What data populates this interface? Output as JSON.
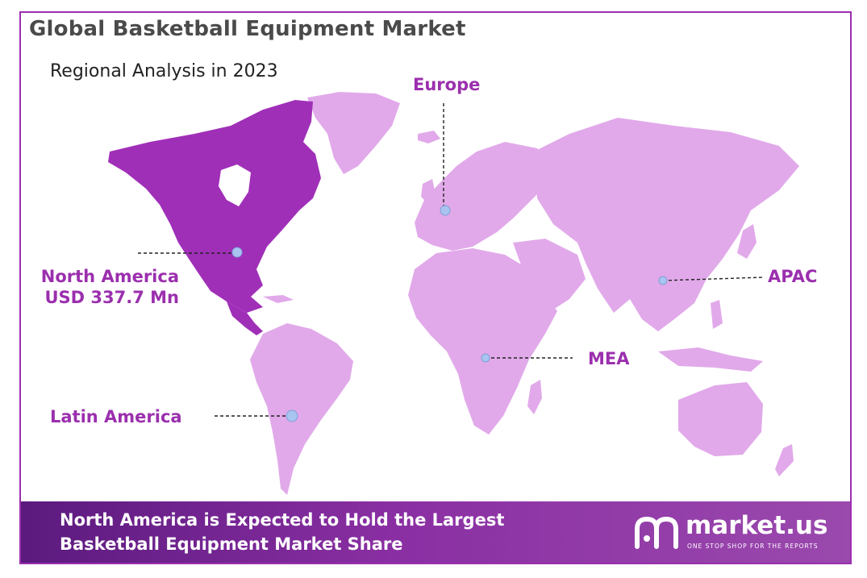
{
  "title": "Global Basketball Equipment Market",
  "subtitle": "Regional Analysis in 2023",
  "colors": {
    "highlight_region": "#a02fb8",
    "other_regions": "#e1a9ea",
    "label": "#9b2fae",
    "marker": "#a9c4f0",
    "footer_start": "#5b1a7e",
    "footer_end": "#9a49ad"
  },
  "regions": {
    "north_america": {
      "name": "North America",
      "value": "USD 337.7 Mn",
      "highlighted": true
    },
    "europe": {
      "name": "Europe"
    },
    "apac": {
      "name": "APAC"
    },
    "mea": {
      "name": "MEA"
    },
    "latin_america": {
      "name": "Latin America"
    }
  },
  "footer": {
    "line1": "North America is Expected to Hold the Largest",
    "line2": "Basketball Equipment Market Share"
  },
  "brand": {
    "name": "market.us",
    "tagline": "ONE STOP SHOP FOR THE REPORTS",
    "icon": "market-us-logo-icon"
  }
}
